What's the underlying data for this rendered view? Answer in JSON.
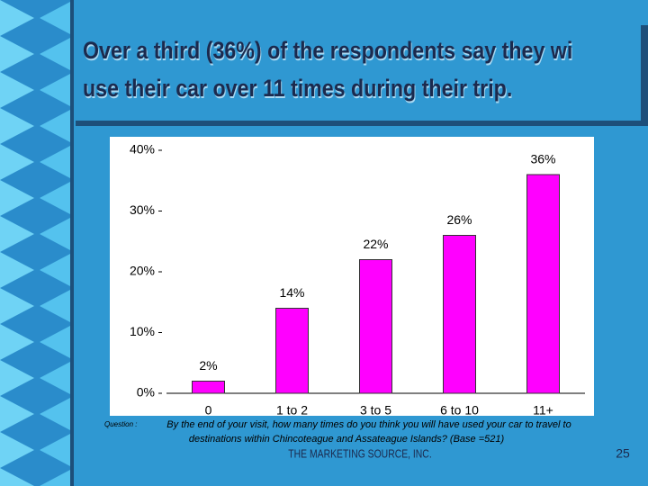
{
  "chart_data": {
    "type": "bar",
    "title_lines": [
      "Over a third (36%) of the respondents say they wi",
      "use their car over 11 times during their trip."
    ],
    "categories": [
      "0",
      "1 to 2",
      "3 to 5",
      "6 to 10",
      "11+"
    ],
    "values": [
      2,
      14,
      22,
      26,
      36
    ],
    "value_labels": [
      "2%",
      "14%",
      "22%",
      "26%",
      "36%"
    ],
    "color": "#ff00ff",
    "ylim": [
      0,
      40
    ],
    "yticks": [
      {
        "value": 0,
        "label": "0%"
      },
      {
        "value": 10,
        "label": "10%"
      },
      {
        "value": 20,
        "label": "20%"
      },
      {
        "value": 30,
        "label": "30%"
      },
      {
        "value": 40,
        "label": "40%"
      }
    ],
    "grid": false,
    "question_label": "Question :",
    "question_lines": [
      "By the end of your visit, how many times do you think you will have used your car to travel to",
      "destinations within Chincoteague and Assateague Islands?  (Base =521)"
    ],
    "footer": "THE MARKETING SOURCE, INC.",
    "page_number": "25"
  }
}
